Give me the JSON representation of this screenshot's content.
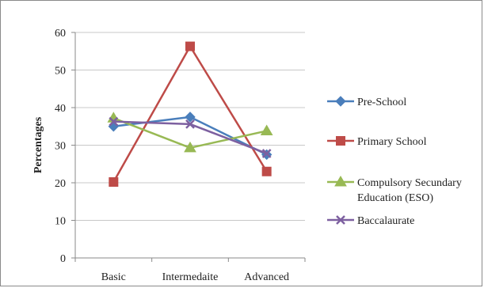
{
  "chart_data": {
    "type": "line",
    "categories": [
      "Basic",
      "Intermedaite",
      "Advanced"
    ],
    "ylabel": "Percentages",
    "xlabel": "",
    "ylim": [
      0,
      60
    ],
    "yticks": [
      0,
      10,
      20,
      30,
      40,
      50,
      60
    ],
    "grid": true,
    "legend_position": "right",
    "series": [
      {
        "name": "Pre-School",
        "values": [
          35.0,
          37.5,
          27.5
        ],
        "color": "#4a7ebb",
        "marker": "diamond"
      },
      {
        "name": "Primary School",
        "values": [
          20.2,
          56.3,
          23.0
        ],
        "color": "#be4b48",
        "marker": "square"
      },
      {
        "name": "Compulsory Secundary Education (ESO)",
        "legend_lines": [
          "Compulsory Secundary",
          "Education (ESO)"
        ],
        "values": [
          37.2,
          29.3,
          33.8
        ],
        "color": "#98b954",
        "marker": "triangle"
      },
      {
        "name": "Baccalaurate",
        "values": [
          36.3,
          35.6,
          27.8
        ],
        "color": "#7d60a0",
        "marker": "x"
      }
    ]
  }
}
